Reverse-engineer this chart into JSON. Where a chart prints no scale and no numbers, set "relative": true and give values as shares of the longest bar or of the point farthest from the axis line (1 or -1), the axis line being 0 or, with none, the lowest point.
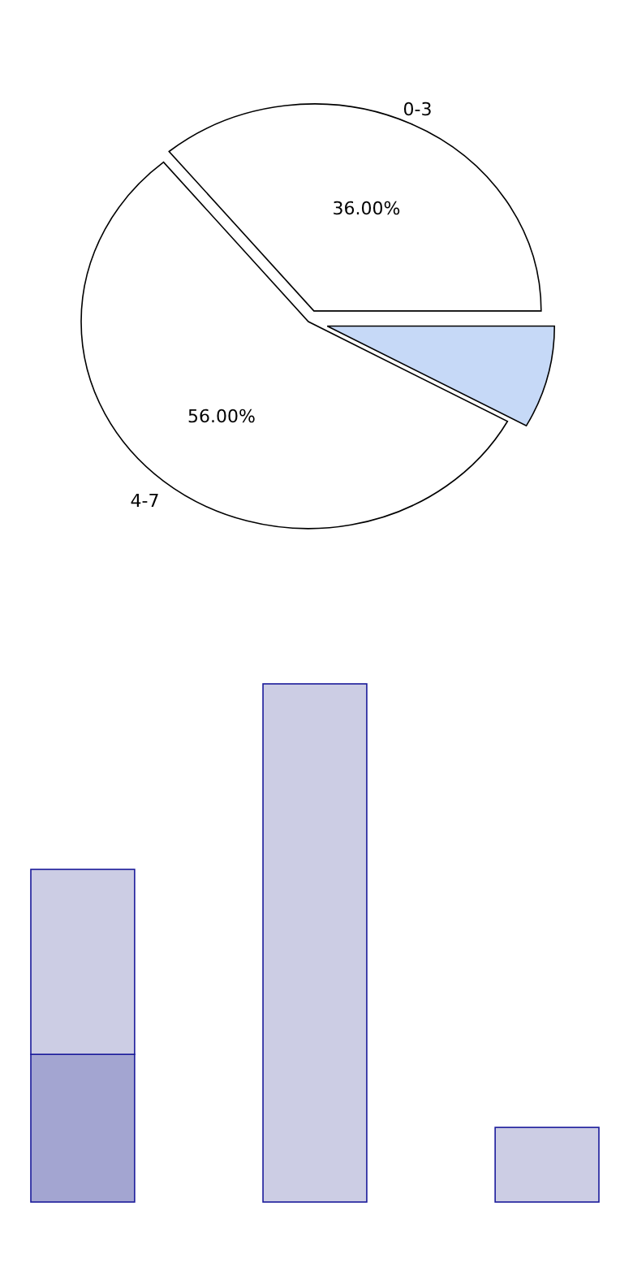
{
  "chart_data": [
    {
      "type": "pie",
      "categories": [
        "0-3",
        null,
        "4-7"
      ],
      "values": [
        36,
        8,
        56
      ],
      "colors": [
        "#ffffff",
        "#c6d9f7",
        "#ffffff"
      ],
      "value_labels": [
        "36.00%",
        null,
        "56.00%"
      ]
    },
    {
      "type": "bar",
      "relative": true,
      "stacked": true,
      "categories": [
        null,
        null,
        null
      ],
      "series": [
        {
          "color": "#a3a5d1",
          "values": [
            0.285,
            null,
            null
          ]
        },
        {
          "color": "#cccde4",
          "values": [
            0.357,
            1,
            0.144
          ]
        }
      ]
    }
  ]
}
